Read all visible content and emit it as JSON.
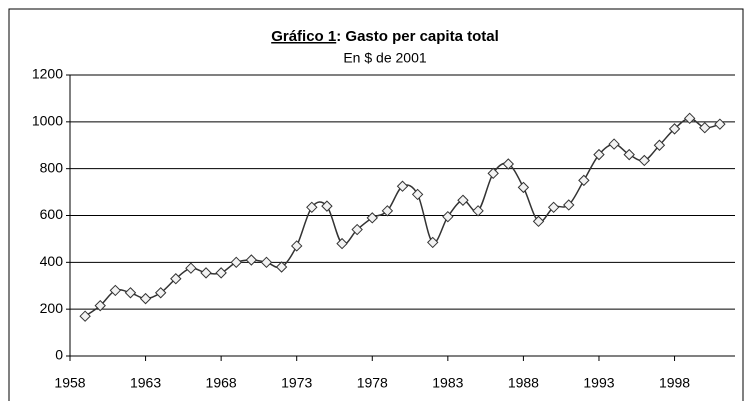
{
  "chart_data": {
    "type": "line",
    "title_number": "Gráfico 1",
    "title": ": Gasto per capita total",
    "subtitle": "En $ de 2001",
    "x": [
      1959,
      1960,
      1961,
      1962,
      1963,
      1964,
      1965,
      1966,
      1967,
      1968,
      1969,
      1970,
      1971,
      1972,
      1973,
      1974,
      1975,
      1976,
      1977,
      1978,
      1979,
      1980,
      1981,
      1982,
      1983,
      1984,
      1985,
      1986,
      1987,
      1988,
      1989,
      1990,
      1991,
      1992,
      1993,
      1994,
      1995,
      1996,
      1997,
      1998,
      1999,
      2000,
      2001
    ],
    "series": [
      {
        "color": "#333333",
        "values": [
          170,
          215,
          280,
          270,
          245,
          270,
          330,
          375,
          355,
          355,
          400,
          410,
          400,
          380,
          470,
          635,
          640,
          480,
          540,
          590,
          620,
          725,
          690,
          485,
          595,
          665,
          620,
          780,
          820,
          720,
          575,
          635,
          645,
          750,
          860,
          905,
          860,
          835,
          900,
          970,
          1015,
          975,
          990
        ]
      }
    ],
    "xlim": [
      1958,
      2002
    ],
    "xticks": [
      1958,
      1963,
      1968,
      1973,
      1978,
      1983,
      1988,
      1993,
      1998
    ],
    "ylim": [
      0,
      1200
    ],
    "yticks": [
      0,
      200,
      400,
      600,
      800,
      1000,
      1200
    ],
    "grid": true
  }
}
